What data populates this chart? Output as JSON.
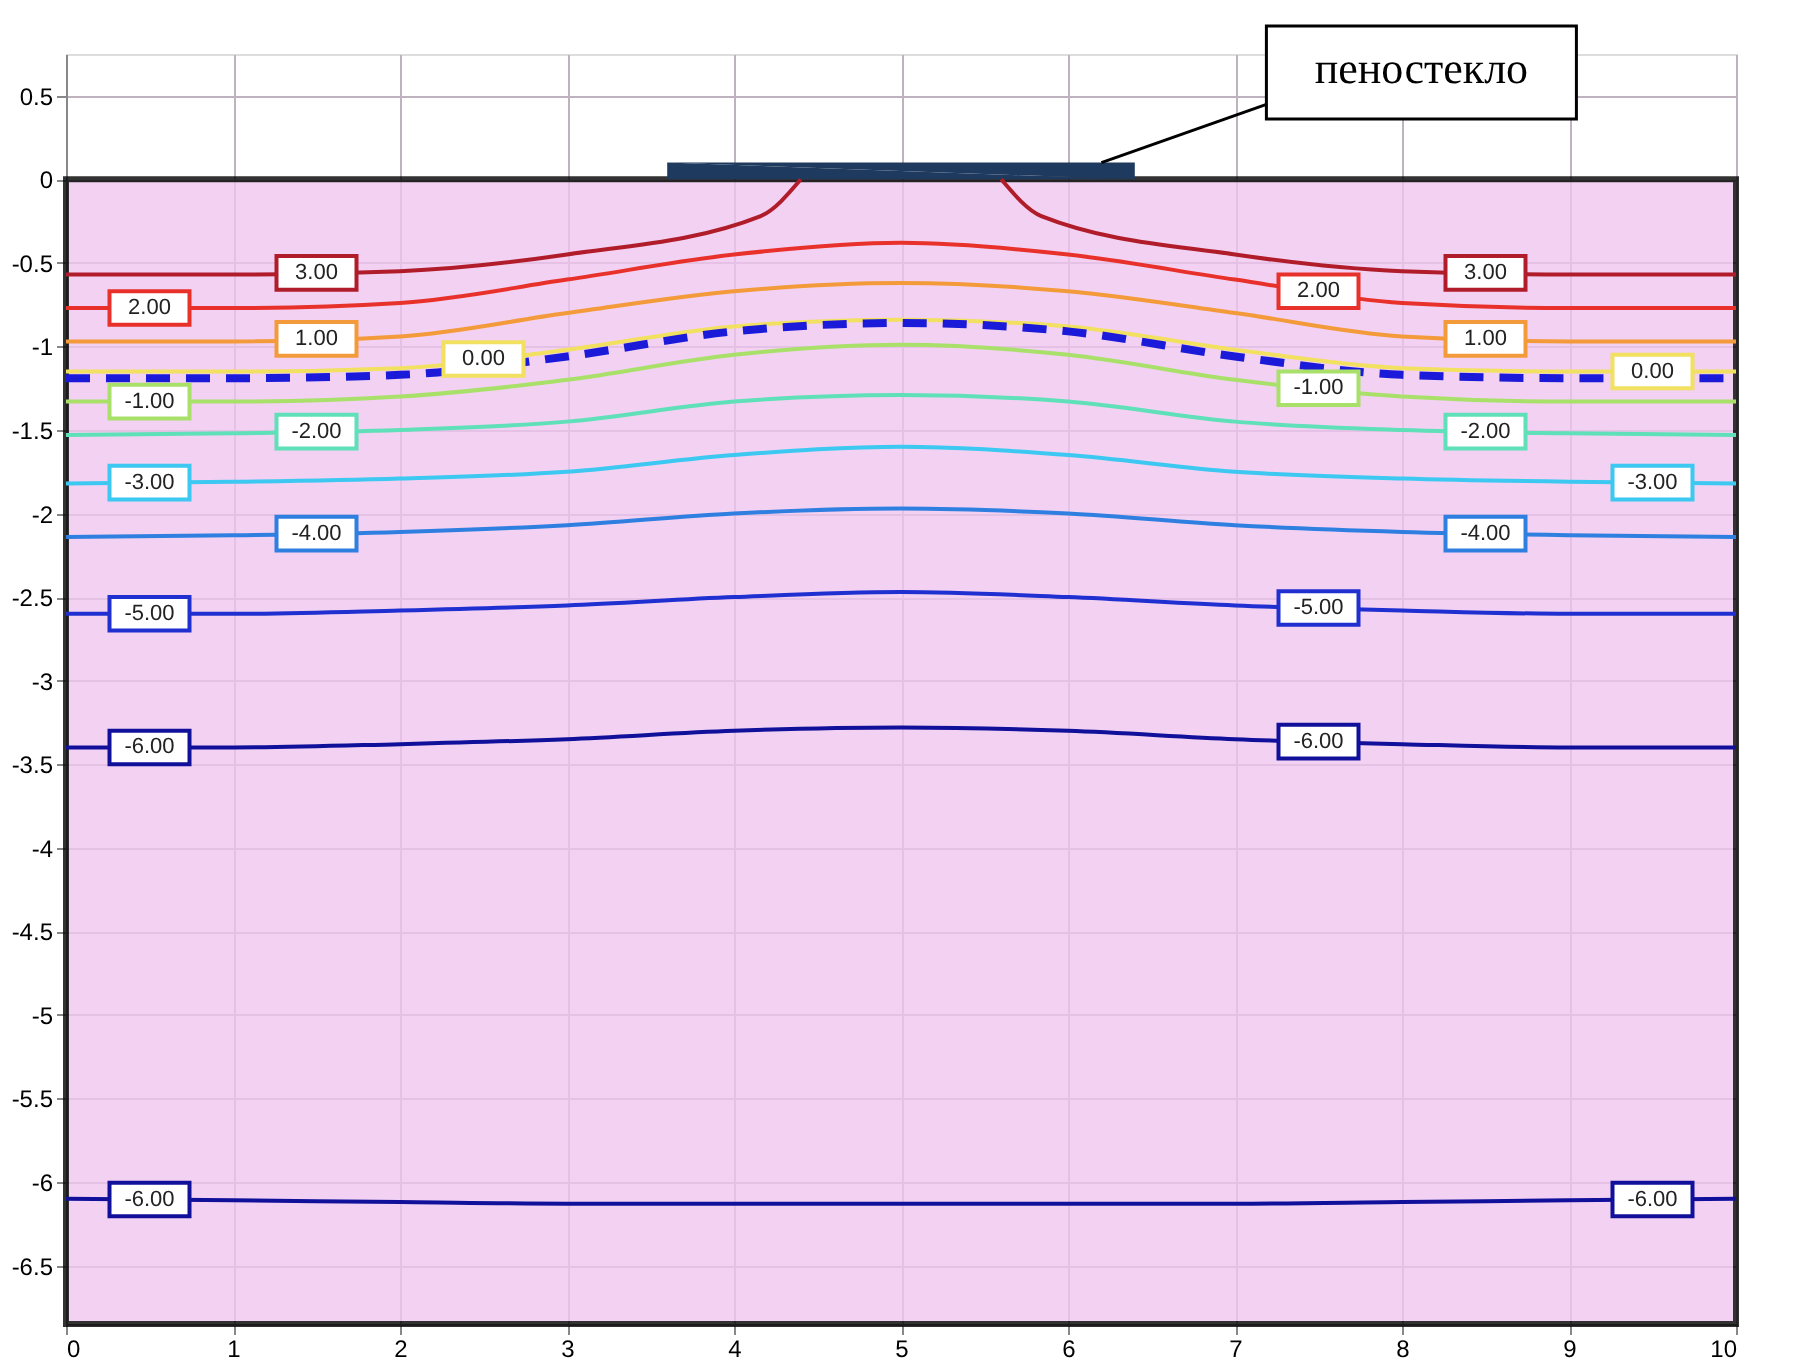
{
  "chart_data": {
    "type": "line",
    "x": [
      0,
      1,
      2,
      3,
      4,
      5,
      6,
      7,
      8,
      9,
      10
    ],
    "xlim": [
      0,
      10
    ],
    "xticks": [
      0,
      1,
      2,
      3,
      4,
      5,
      6,
      7,
      8,
      9,
      10
    ],
    "ylim": [
      -6.85,
      0.75
    ],
    "yticks": [
      0.5,
      0,
      -0.5,
      -1,
      -1.5,
      -2,
      -2.5,
      -3,
      -3.5,
      -4,
      -4.5,
      -5,
      -5.5,
      -6,
      -6.5
    ],
    "grid": true,
    "line_style": "solid",
    "marker": "none",
    "series": [
      {
        "type": "area",
        "color": "#1f3a5f",
        "x": [
          3.6,
          6.4
        ],
        "values": [
          0.1,
          0.1
        ]
      },
      {
        "name": "3.00",
        "color": "#b01c2a",
        "x": [
          0,
          1,
          2,
          3,
          4.16,
          4.4,
          5,
          5.6,
          5.84,
          7,
          8,
          9,
          10
        ],
        "values": [
          -0.57,
          -0.57,
          -0.55,
          -0.45,
          -0.22,
          0,
          null,
          0,
          -0.22,
          -0.45,
          -0.55,
          -0.57,
          -0.57
        ]
      },
      {
        "name": "2.00",
        "color": "#e8312a",
        "values": [
          -0.77,
          -0.77,
          -0.74,
          -0.6,
          -0.45,
          -0.38,
          -0.45,
          -0.6,
          -0.74,
          -0.77,
          -0.77
        ]
      },
      {
        "name": "1.00",
        "color": "#f39a3a",
        "values": [
          -0.97,
          -0.97,
          -0.94,
          -0.8,
          -0.67,
          -0.62,
          -0.67,
          -0.8,
          -0.94,
          -0.97,
          -0.97
        ]
      },
      {
        "name": "0.00",
        "color": "#f2e060",
        "values": [
          -1.15,
          -1.15,
          -1.13,
          -1.02,
          -0.88,
          -0.84,
          -0.88,
          -1.02,
          -1.13,
          -1.15,
          -1.15
        ]
      },
      {
        "color": "#1a1ad8",
        "line_style": "dashed",
        "values": [
          -1.19,
          -1.19,
          -1.17,
          -1.06,
          -0.91,
          -0.86,
          -0.91,
          -1.06,
          -1.17,
          -1.19,
          -1.19
        ]
      },
      {
        "name": "-1.00",
        "color": "#a8e06a",
        "values": [
          -1.33,
          -1.33,
          -1.3,
          -1.2,
          -1.05,
          -0.99,
          -1.05,
          -1.2,
          -1.3,
          -1.33,
          -1.33
        ]
      },
      {
        "name": "-2.00",
        "color": "#5fe0b8",
        "values": [
          -1.53,
          -1.52,
          -1.5,
          -1.45,
          -1.33,
          -1.29,
          -1.33,
          -1.45,
          -1.5,
          -1.52,
          -1.53
        ]
      },
      {
        "name": "-3.00",
        "color": "#3cc8f0",
        "values": [
          -1.82,
          -1.81,
          -1.79,
          -1.75,
          -1.65,
          -1.6,
          -1.65,
          -1.75,
          -1.79,
          -1.81,
          -1.82
        ]
      },
      {
        "name": "-4.00",
        "color": "#2f7fe0",
        "values": [
          -2.14,
          -2.13,
          -2.11,
          -2.07,
          -2.0,
          -1.97,
          -2.0,
          -2.07,
          -2.11,
          -2.13,
          -2.14
        ]
      },
      {
        "name": "-5.00",
        "color": "#1f2fd0",
        "values": [
          -2.6,
          -2.6,
          -2.58,
          -2.55,
          -2.5,
          -2.47,
          -2.5,
          -2.55,
          -2.58,
          -2.6,
          -2.6
        ]
      },
      {
        "name": "-6.00",
        "color": "#10109a",
        "values": [
          -3.4,
          -3.4,
          -3.38,
          -3.35,
          -3.3,
          -3.28,
          -3.3,
          -3.35,
          -3.38,
          -3.4,
          -3.4
        ]
      },
      {
        "name": "-6.00",
        "color": "#10109a",
        "values": [
          -6.1,
          -6.11,
          -6.12,
          -6.13,
          -6.13,
          -6.13,
          -6.13,
          -6.13,
          -6.12,
          -6.11,
          -6.1
        ]
      }
    ],
    "bands": [
      {
        "axis": "y",
        "from": -6.85,
        "to": 0,
        "color": "#f0c6f0"
      }
    ],
    "annotations": [
      {
        "text": "пеностекло",
        "x": 6.2,
        "y": 0.1
      }
    ]
  }
}
